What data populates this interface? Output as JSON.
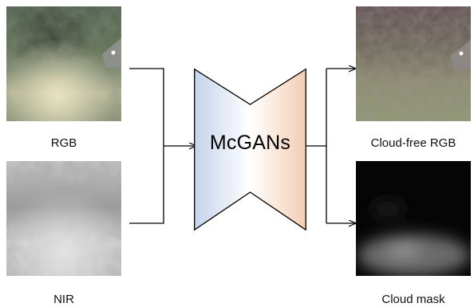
{
  "inputs": [
    {
      "label": "RGB"
    },
    {
      "label": "NIR"
    }
  ],
  "model": {
    "label": "McGANs"
  },
  "outputs": [
    {
      "label": "Cloud-free RGB"
    },
    {
      "label": "Cloud mask"
    }
  ]
}
